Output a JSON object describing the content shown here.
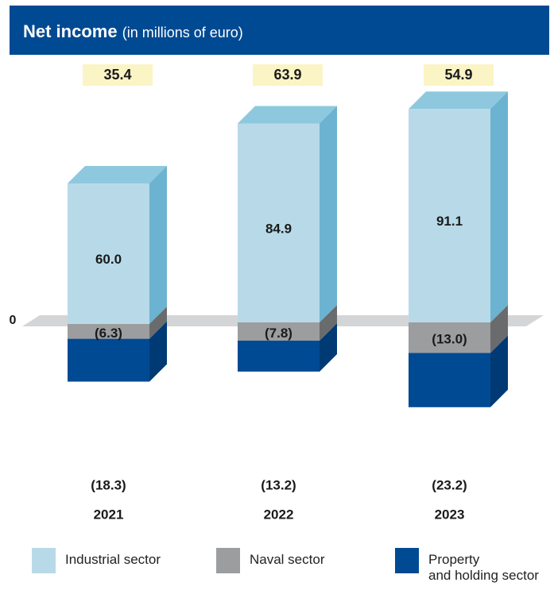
{
  "header": {
    "title": "Net income",
    "subtitle": "(in millions of euro)"
  },
  "chart_data": {
    "type": "bar",
    "stacked": true,
    "title": "Net income",
    "subtitle": "(in millions of euro)",
    "zero_label": "0",
    "categories": [
      "2021",
      "2022",
      "2023"
    ],
    "series": [
      {
        "name": "Industrial sector",
        "values": [
          60.0,
          84.9,
          91.1
        ],
        "labels": [
          "60.0",
          "84.9",
          "91.1"
        ],
        "color": "#b8dae8",
        "side_color": "#6bb3d0",
        "top_color": "#8ec8de"
      },
      {
        "name": "Naval sector",
        "values": [
          -6.3,
          -7.8,
          -13.0
        ],
        "labels": [
          "(6.3)",
          "(7.8)",
          "(13.0)"
        ],
        "color": "#9c9d9f",
        "side_color": "#6a6b6d",
        "top_color": "#b4b5b7"
      },
      {
        "name": "Property\nand holding sector",
        "values": [
          -18.3,
          -13.2,
          -23.2
        ],
        "labels": [
          "(18.3)",
          "(13.2)",
          "(23.2)"
        ],
        "color": "#004a93",
        "side_color": "#003a74",
        "top_color": "#1a5fa3"
      }
    ],
    "totals": [
      35.4,
      63.9,
      54.9
    ],
    "total_labels": [
      "35.4",
      "63.9",
      "54.9"
    ],
    "total_box_color": "#fbf4c4",
    "zero_plane_color": "#d4d5d7",
    "legend": "bottom"
  }
}
